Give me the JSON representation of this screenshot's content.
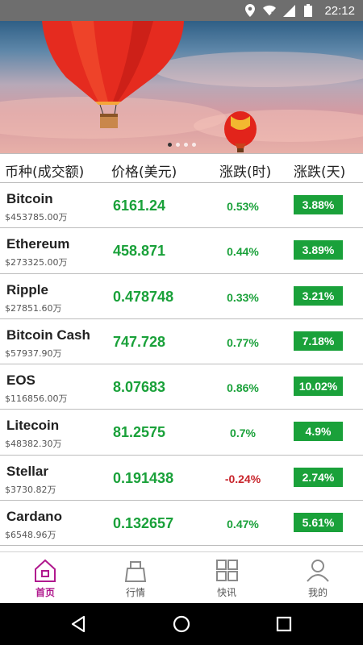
{
  "status_bar": {
    "time": "22:12",
    "icons": [
      "location-icon",
      "wifi-icon",
      "signal-icon",
      "battery-icon"
    ]
  },
  "banner": {
    "slides": 4,
    "active_slide": 1
  },
  "table": {
    "headers": {
      "coin": "币种(成交额)",
      "price": "价格(美元)",
      "hour": "涨跌(时)",
      "day": "涨跌(天)"
    },
    "rows": [
      {
        "name": "Bitcoin",
        "volume": "$453785.00万",
        "price": "6161.24",
        "change_hour": "0.53%",
        "change_day": "3.88%"
      },
      {
        "name": "Ethereum",
        "volume": "$273325.00万",
        "price": "458.871",
        "change_hour": "0.44%",
        "change_day": "3.89%"
      },
      {
        "name": "Ripple",
        "volume": "$27851.60万",
        "price": "0.478748",
        "change_hour": "0.33%",
        "change_day": "3.21%"
      },
      {
        "name": "Bitcoin Cash",
        "volume": "$57937.90万",
        "price": "747.728",
        "change_hour": "0.77%",
        "change_day": "7.18%"
      },
      {
        "name": "EOS",
        "volume": "$116856.00万",
        "price": "8.07683",
        "change_hour": "0.86%",
        "change_day": "10.02%"
      },
      {
        "name": "Litecoin",
        "volume": "$48382.30万",
        "price": "81.2575",
        "change_hour": "0.7%",
        "change_day": "4.9%"
      },
      {
        "name": "Stellar",
        "volume": "$3730.82万",
        "price": "0.191438",
        "change_hour": "-0.24%",
        "change_day": "2.74%"
      },
      {
        "name": "Cardano",
        "volume": "$6548.96万",
        "price": "0.132657",
        "change_hour": "0.47%",
        "change_day": "5.61%"
      }
    ]
  },
  "tabbar": {
    "items": [
      {
        "label": "首页",
        "icon": "home-icon",
        "active": true
      },
      {
        "label": "行情",
        "icon": "market-icon",
        "active": false
      },
      {
        "label": "快讯",
        "icon": "news-grid-icon",
        "active": false
      },
      {
        "label": "我的",
        "icon": "profile-icon",
        "active": false
      }
    ]
  },
  "colors": {
    "positive": "#1aa13a",
    "negative": "#c8242b",
    "active_tab": "#b0198e"
  },
  "nav_bar": {
    "buttons": [
      "back-icon",
      "home-circle-icon",
      "recents-icon"
    ]
  }
}
